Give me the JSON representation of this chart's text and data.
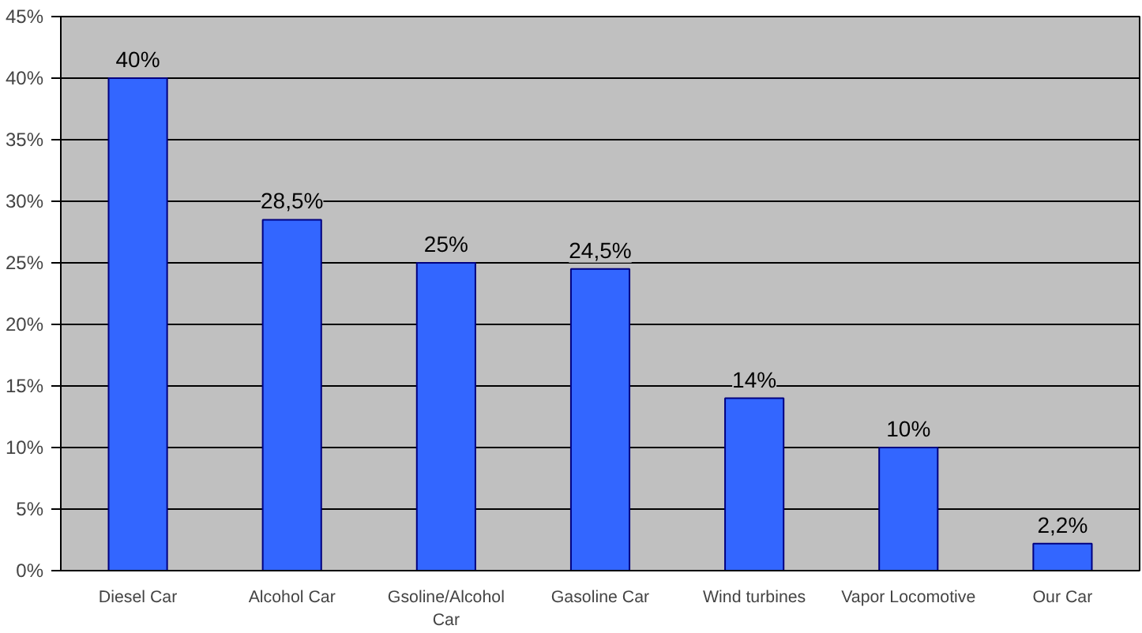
{
  "chart_data": {
    "type": "bar",
    "categories": [
      "Diesel Car",
      "Alcohol Car",
      "Gsoline/Alcohol Car",
      "Gasoline Car",
      "Wind turbines",
      "Vapor Locomotive",
      "Our Car"
    ],
    "values": [
      40,
      28.5,
      25,
      24.5,
      14,
      10,
      2.2
    ],
    "value_labels": [
      "40%",
      "28,5%",
      "25%",
      "24,5%",
      "14%",
      "10%",
      "2,2%"
    ],
    "color": "#3366ff",
    "ylim": [
      0,
      45
    ],
    "yticks": [
      {
        "value": 0,
        "label": "0%"
      },
      {
        "value": 5,
        "label": "5%"
      },
      {
        "value": 10,
        "label": "10%"
      },
      {
        "value": 15,
        "label": "15%"
      },
      {
        "value": 20,
        "label": "20%"
      },
      {
        "value": 25,
        "label": "25%"
      },
      {
        "value": 30,
        "label": "30%"
      },
      {
        "value": 35,
        "label": "35%"
      },
      {
        "value": 40,
        "label": "40%"
      },
      {
        "value": 45,
        "label": "45%"
      }
    ],
    "grid": "y"
  }
}
